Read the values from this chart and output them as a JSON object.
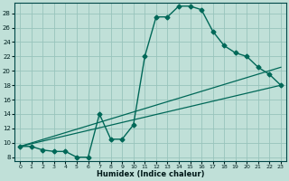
{
  "bg_color": "#c0e0d8",
  "grid_color": "#98c4bc",
  "line_color": "#006858",
  "xlabel": "Humidex (Indice chaleur)",
  "xlim": [
    -0.5,
    23.5
  ],
  "ylim": [
    7.5,
    29.5
  ],
  "xticks": [
    0,
    1,
    2,
    3,
    4,
    5,
    6,
    7,
    8,
    9,
    10,
    11,
    12,
    13,
    14,
    15,
    16,
    17,
    18,
    19,
    20,
    21,
    22,
    23
  ],
  "yticks": [
    8,
    10,
    12,
    14,
    16,
    18,
    20,
    22,
    24,
    26,
    28
  ],
  "main_x": [
    0,
    1,
    2,
    3,
    4,
    5,
    6,
    7,
    8,
    9,
    10,
    11,
    12,
    13,
    14,
    15,
    16,
    17,
    18,
    19,
    20,
    21,
    22,
    23
  ],
  "main_y": [
    9.5,
    9.5,
    9.0,
    8.8,
    8.8,
    8.0,
    8.0,
    14.0,
    10.5,
    10.5,
    12.5,
    22.0,
    27.5,
    27.5,
    29.0,
    29.0,
    28.5,
    25.5,
    23.5,
    22.5,
    22.0,
    20.5,
    19.5,
    18.0
  ],
  "straight_lines": [
    {
      "x": [
        0,
        23
      ],
      "y": [
        9.5,
        18.0
      ]
    },
    {
      "x": [
        0,
        23
      ],
      "y": [
        9.5,
        20.5
      ]
    }
  ]
}
